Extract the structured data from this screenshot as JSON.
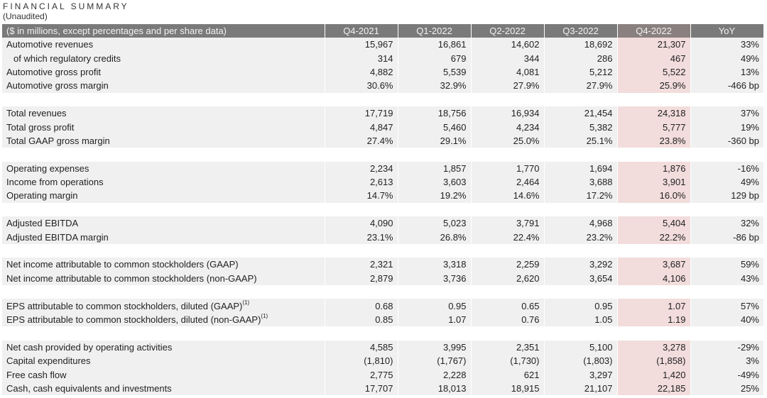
{
  "title": "FINANCIAL SUMMARY",
  "subtitle": "(Unaudited)",
  "header": [
    "($ in millions, except percentages and per share data)",
    "Q4-2021",
    "Q1-2022",
    "Q2-2022",
    "Q3-2022",
    "Q4-2022",
    "YoY"
  ],
  "highlight_color": "#f2dcdc",
  "row_shading": "#f0f0f0",
  "header_color": "#7a7a7a",
  "groups": [
    [
      {
        "label": "Automotive revenues",
        "values": [
          "15,967",
          "16,861",
          "14,602",
          "18,692",
          "21,307",
          "33%"
        ]
      },
      {
        "label": "of which regulatory credits",
        "indent": true,
        "values": [
          "314",
          "679",
          "344",
          "286",
          "467",
          "49%"
        ]
      },
      {
        "label": "Automotive gross profit",
        "values": [
          "4,882",
          "5,539",
          "4,081",
          "5,212",
          "5,522",
          "13%"
        ]
      },
      {
        "label": "Automotive gross margin",
        "values": [
          "30.6%",
          "32.9%",
          "27.9%",
          "27.9%",
          "25.9%",
          "-466 bp"
        ]
      }
    ],
    [
      {
        "label": "Total revenues",
        "values": [
          "17,719",
          "18,756",
          "16,934",
          "21,454",
          "24,318",
          "37%"
        ]
      },
      {
        "label": "Total gross profit",
        "values": [
          "4,847",
          "5,460",
          "4,234",
          "5,382",
          "5,777",
          "19%"
        ]
      },
      {
        "label": "Total GAAP gross margin",
        "values": [
          "27.4%",
          "29.1%",
          "25.0%",
          "25.1%",
          "23.8%",
          "-360 bp"
        ]
      }
    ],
    [
      {
        "label": "Operating expenses",
        "values": [
          "2,234",
          "1,857",
          "1,770",
          "1,694",
          "1,876",
          "-16%"
        ]
      },
      {
        "label": "Income from operations",
        "values": [
          "2,613",
          "3,603",
          "2,464",
          "3,688",
          "3,901",
          "49%"
        ]
      },
      {
        "label": "Operating margin",
        "values": [
          "14.7%",
          "19.2%",
          "14.6%",
          "17.2%",
          "16.0%",
          "129 bp"
        ]
      }
    ],
    [
      {
        "label": "Adjusted EBITDA",
        "values": [
          "4,090",
          "5,023",
          "3,791",
          "4,968",
          "5,404",
          "32%"
        ]
      },
      {
        "label": "Adjusted EBITDA margin",
        "values": [
          "23.1%",
          "26.8%",
          "22.4%",
          "23.2%",
          "22.2%",
          "-86 bp"
        ]
      }
    ],
    [
      {
        "label": "Net income attributable to common stockholders (GAAP)",
        "values": [
          "2,321",
          "3,318",
          "2,259",
          "3,292",
          "3,687",
          "59%"
        ]
      },
      {
        "label": "Net income attributable to common stockholders (non-GAAP)",
        "values": [
          "2,879",
          "3,736",
          "2,620",
          "3,654",
          "4,106",
          "43%"
        ]
      }
    ],
    [
      {
        "label": "EPS attributable to common stockholders, diluted (GAAP)",
        "sup": "(1)",
        "values": [
          "0.68",
          "0.95",
          "0.65",
          "0.95",
          "1.07",
          "57%"
        ]
      },
      {
        "label": "EPS attributable to common stockholders, diluted (non-GAAP)",
        "sup": "(1)",
        "values": [
          "0.85",
          "1.07",
          "0.76",
          "1.05",
          "1.19",
          "40%"
        ]
      }
    ],
    [
      {
        "label": "Net cash provided by operating activities",
        "values": [
          "4,585",
          "3,995",
          "2,351",
          "5,100",
          "3,278",
          "-29%"
        ]
      },
      {
        "label": "Capital expenditures",
        "values": [
          "(1,810)",
          "(1,767)",
          "(1,730)",
          "(1,803)",
          "(1,858)",
          "3%"
        ]
      },
      {
        "label": "Free cash flow",
        "values": [
          "2,775",
          "2,228",
          "621",
          "3,297",
          "1,420",
          "-49%"
        ]
      },
      {
        "label": "Cash, cash equivalents and investments",
        "values": [
          "17,707",
          "18,013",
          "18,915",
          "21,107",
          "22,185",
          "25%"
        ]
      }
    ]
  ]
}
